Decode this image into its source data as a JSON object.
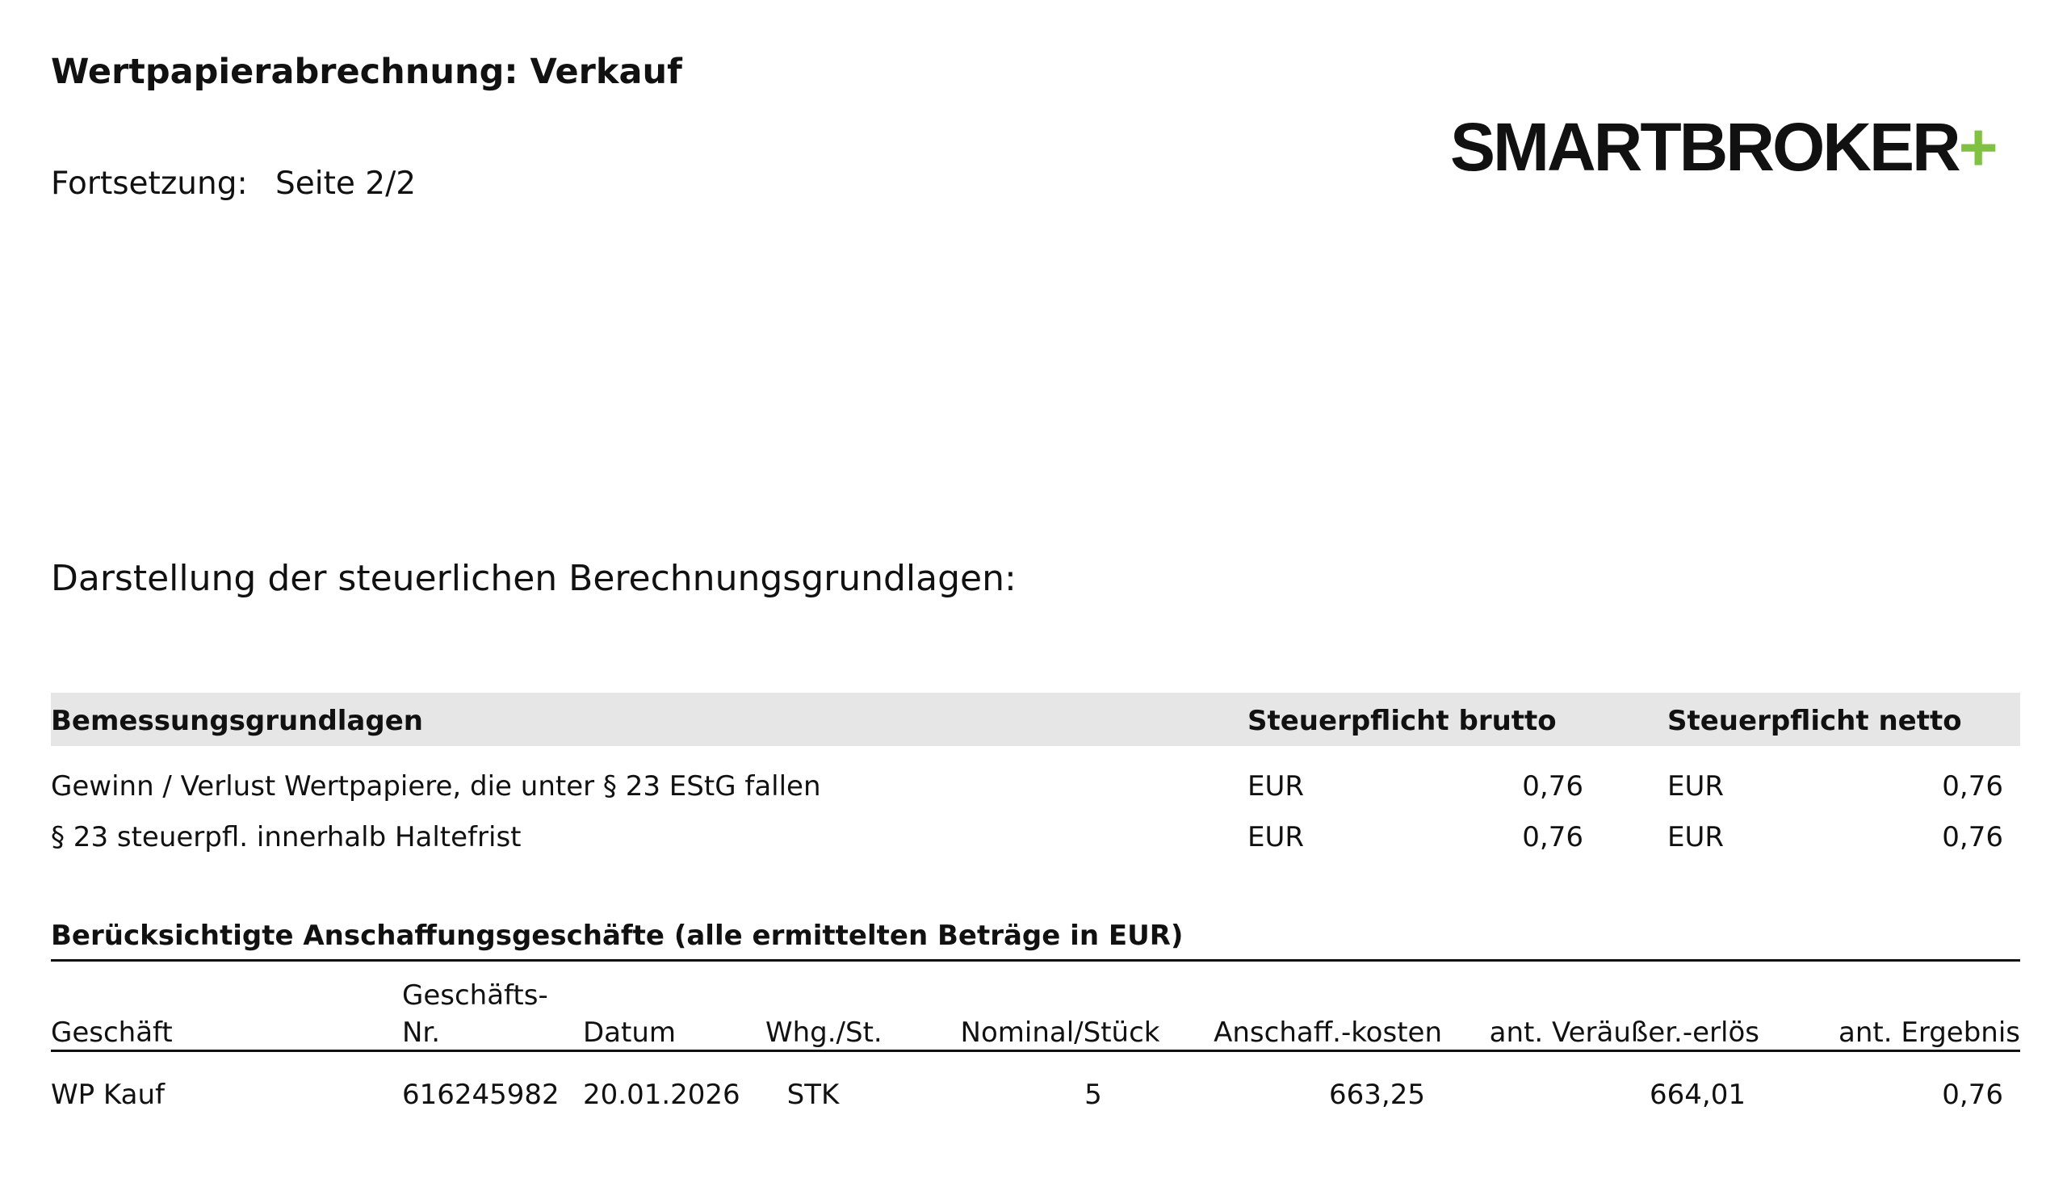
{
  "header": {
    "title": "Wertpapierabrechnung: Verkauf",
    "continuation_label": "Fortsetzung:",
    "page": "Seite 2/2",
    "logo": "SMARTBROKER",
    "logo_plus": "+"
  },
  "section_title": "Darstellung der steuerlichen Berechnungsgrundlagen:",
  "tax_table": {
    "columns": [
      "Bemessungsgrundlagen",
      "Steuerpflicht brutto",
      "Steuerpflicht netto"
    ],
    "rows": [
      [
        "Gewinn / Verlust Wertpapiere, die unter § 23 EStG fallen",
        "EUR",
        "0,76",
        "EUR",
        "0,76"
      ],
      [
        "§ 23 steuerpfl. innerhalb Haltefrist",
        "EUR",
        "0,76",
        "EUR",
        "0,76"
      ]
    ]
  },
  "acquisitions": {
    "title": "Berücksichtigte Anschaffungsgeschäfte (alle ermittelten Beträge in EUR)",
    "columns": [
      "Geschäft",
      "Geschäfts-\nNr.",
      "Datum",
      "Whg./St.",
      "Nominal/Stück",
      "Anschaff.-kosten",
      "ant. Veräußer.-erlös",
      "ant. Ergebnis"
    ],
    "rows": [
      [
        "WP Kauf",
        "616245982",
        "20.01.2026",
        "STK",
        "5",
        "663,25",
        "664,01",
        "0,76"
      ]
    ]
  }
}
